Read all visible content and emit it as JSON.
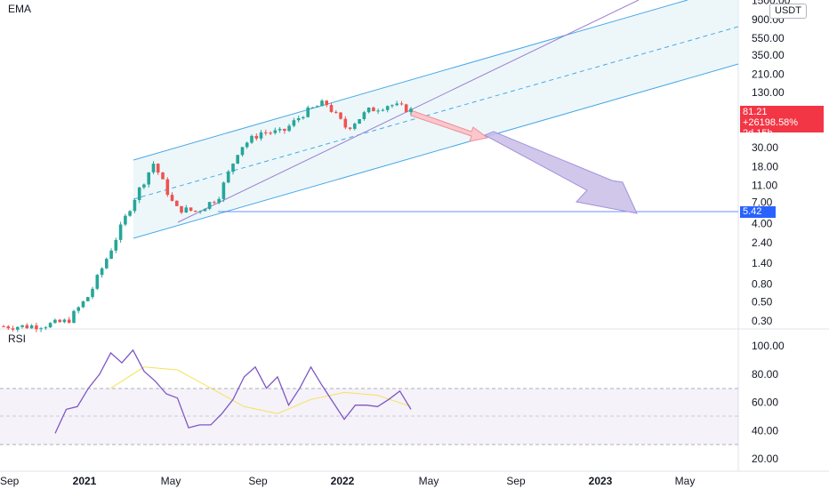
{
  "main_pane": {
    "indicator_label": "EMA",
    "currency": "USDT"
  },
  "rsi_pane": {
    "indicator_label": "RSI"
  },
  "price_axis": {
    "ticks": [
      "1500.00",
      "900.00",
      "550.00",
      "350.00",
      "210.00",
      "130.00",
      "30.00",
      "18.00",
      "11.00",
      "7.00",
      "4.00",
      "2.40",
      "1.40",
      "0.80",
      "0.50",
      "0.30"
    ],
    "last_price_tag": {
      "price": "81.21",
      "change": "+26198.58%",
      "countdown": "2d 15h",
      "color": "#f23645"
    },
    "level_tag": {
      "value": "5.42",
      "color": "#2962ff"
    }
  },
  "rsi_axis": {
    "ticks": [
      "100.00",
      "80.00",
      "60.00",
      "40.00",
      "20.00"
    ]
  },
  "time_axis": {
    "labels": [
      "Sep",
      "2021",
      "May",
      "Sep",
      "2022",
      "May",
      "Sep",
      "2023",
      "May"
    ]
  },
  "colors": {
    "up": "#26a69a",
    "down": "#ef5350",
    "channel": "#4aa8e8",
    "trendline": "#9c7fd0",
    "rsi": "#7e57c2",
    "rsi_ma": "#f5e25a"
  },
  "chart_data": [
    {
      "type": "candlestick",
      "scale": "log",
      "ylim": [
        0.22,
        1700
      ],
      "series": [
        {
          "name": "EMA",
          "values": [
            [
              "2020-09",
              0.26
            ],
            [
              "2020-10",
              0.26
            ],
            [
              "2020-11",
              0.27
            ],
            [
              "2020-12",
              0.3
            ],
            [
              "2021-01",
              0.6
            ],
            [
              "2021-02",
              2.0
            ],
            [
              "2021-03",
              7.0
            ],
            [
              "2021-04",
              20.0
            ],
            [
              "2021-05",
              6.0
            ],
            [
              "2021-06",
              5.5
            ],
            [
              "2021-07",
              8.0
            ],
            [
              "2021-08",
              30.0
            ],
            [
              "2021-09",
              45.0
            ],
            [
              "2021-10",
              45.0
            ],
            [
              "2021-11",
              75.0
            ],
            [
              "2021-12",
              100.0
            ],
            [
              "2022-01",
              50.0
            ],
            [
              "2022-02",
              80.0
            ],
            [
              "2022-03",
              95.0
            ],
            [
              "2022-04",
              81.21
            ]
          ]
        }
      ],
      "annotations": {
        "horizontal_level": 5.42,
        "last_price": 81.21
      }
    },
    {
      "type": "line",
      "title": "RSI",
      "ylim": [
        10,
        110
      ],
      "band": [
        30,
        70
      ],
      "midline": 50,
      "series": [
        {
          "name": "RSI",
          "values": [
            [
              0,
              38
            ],
            [
              3,
              55
            ],
            [
              6,
              57
            ],
            [
              9,
              70
            ],
            [
              12,
              80
            ],
            [
              15,
              95
            ],
            [
              18,
              88
            ],
            [
              21,
              97
            ],
            [
              24,
              82
            ],
            [
              27,
              75
            ],
            [
              30,
              66
            ],
            [
              33,
              63
            ],
            [
              36,
              42
            ],
            [
              39,
              44
            ],
            [
              42,
              44
            ],
            [
              45,
              52
            ],
            [
              48,
              62
            ],
            [
              51,
              78
            ],
            [
              54,
              85
            ],
            [
              57,
              70
            ],
            [
              60,
              78
            ],
            [
              63,
              58
            ],
            [
              66,
              70
            ],
            [
              69,
              85
            ],
            [
              72,
              72
            ],
            [
              75,
              60
            ],
            [
              78,
              48
            ],
            [
              81,
              58
            ],
            [
              84,
              58
            ],
            [
              87,
              57
            ],
            [
              90,
              62
            ],
            [
              93,
              68
            ],
            [
              96,
              55
            ]
          ]
        },
        {
          "name": "RSI MA",
          "values": [
            [
              15,
              70
            ],
            [
              24,
              85
            ],
            [
              33,
              83
            ],
            [
              42,
              70
            ],
            [
              51,
              57
            ],
            [
              60,
              52
            ],
            [
              69,
              62
            ],
            [
              78,
              67
            ],
            [
              87,
              65
            ],
            [
              96,
              57
            ]
          ]
        }
      ]
    }
  ]
}
